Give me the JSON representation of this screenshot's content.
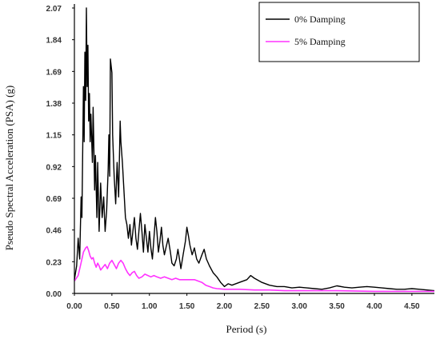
{
  "chart_data": {
    "type": "line",
    "title": "",
    "xlabel": "Period (s)",
    "ylabel": "Pseudo Spectral Acceleration (PSA) (g)",
    "xlim": [
      0,
      4.8
    ],
    "ylim": [
      0,
      2.07
    ],
    "x_ticks": [
      "0.00",
      "0.50",
      "1.00",
      "1.50",
      "2.00",
      "2.50",
      "3.00",
      "3.50",
      "4.00",
      "4.50"
    ],
    "y_ticks": [
      "0.00",
      "0.23",
      "0.46",
      "0.69",
      "0.92",
      "1.15",
      "1.38",
      "1.69",
      "1.84",
      "2.07"
    ],
    "legend_position": "top-right",
    "grid": false,
    "series": [
      {
        "name": "0% Damping",
        "color": "#000000",
        "points": [
          [
            0.0,
            0.1
          ],
          [
            0.03,
            0.2
          ],
          [
            0.05,
            0.4
          ],
          [
            0.07,
            0.25
          ],
          [
            0.09,
            0.7
          ],
          [
            0.1,
            0.55
          ],
          [
            0.12,
            1.5
          ],
          [
            0.13,
            1.1
          ],
          [
            0.14,
            1.75
          ],
          [
            0.15,
            1.4
          ],
          [
            0.16,
            2.07
          ],
          [
            0.17,
            1.5
          ],
          [
            0.18,
            1.8
          ],
          [
            0.19,
            1.25
          ],
          [
            0.2,
            1.45
          ],
          [
            0.21,
            1.1
          ],
          [
            0.22,
            1.3
          ],
          [
            0.24,
            0.95
          ],
          [
            0.25,
            1.35
          ],
          [
            0.27,
            0.75
          ],
          [
            0.28,
            1.0
          ],
          [
            0.3,
            0.55
          ],
          [
            0.31,
            0.95
          ],
          [
            0.33,
            0.45
          ],
          [
            0.35,
            0.8
          ],
          [
            0.37,
            0.55
          ],
          [
            0.39,
            0.7
          ],
          [
            0.41,
            0.45
          ],
          [
            0.43,
            0.6
          ],
          [
            0.45,
            0.9
          ],
          [
            0.46,
            1.15
          ],
          [
            0.47,
            0.85
          ],
          [
            0.48,
            1.7
          ],
          [
            0.5,
            1.6
          ],
          [
            0.51,
            1.15
          ],
          [
            0.53,
            0.85
          ],
          [
            0.55,
            0.65
          ],
          [
            0.57,
            0.95
          ],
          [
            0.59,
            0.7
          ],
          [
            0.61,
            1.25
          ],
          [
            0.62,
            1.1
          ],
          [
            0.64,
            0.95
          ],
          [
            0.66,
            0.75
          ],
          [
            0.68,
            0.55
          ],
          [
            0.7,
            0.5
          ],
          [
            0.72,
            0.4
          ],
          [
            0.74,
            0.5
          ],
          [
            0.76,
            0.35
          ],
          [
            0.78,
            0.45
          ],
          [
            0.8,
            0.55
          ],
          [
            0.82,
            0.4
          ],
          [
            0.84,
            0.32
          ],
          [
            0.86,
            0.45
          ],
          [
            0.88,
            0.58
          ],
          [
            0.9,
            0.45
          ],
          [
            0.92,
            0.3
          ],
          [
            0.94,
            0.5
          ],
          [
            0.96,
            0.4
          ],
          [
            0.98,
            0.3
          ],
          [
            1.0,
            0.45
          ],
          [
            1.02,
            0.33
          ],
          [
            1.04,
            0.25
          ],
          [
            1.06,
            0.4
          ],
          [
            1.08,
            0.55
          ],
          [
            1.1,
            0.45
          ],
          [
            1.12,
            0.3
          ],
          [
            1.14,
            0.38
          ],
          [
            1.16,
            0.48
          ],
          [
            1.18,
            0.35
          ],
          [
            1.2,
            0.28
          ],
          [
            1.22,
            0.33
          ],
          [
            1.25,
            0.4
          ],
          [
            1.28,
            0.3
          ],
          [
            1.3,
            0.22
          ],
          [
            1.33,
            0.2
          ],
          [
            1.36,
            0.25
          ],
          [
            1.38,
            0.32
          ],
          [
            1.4,
            0.25
          ],
          [
            1.42,
            0.18
          ],
          [
            1.45,
            0.28
          ],
          [
            1.48,
            0.38
          ],
          [
            1.5,
            0.48
          ],
          [
            1.52,
            0.42
          ],
          [
            1.54,
            0.35
          ],
          [
            1.57,
            0.28
          ],
          [
            1.6,
            0.33
          ],
          [
            1.63,
            0.25
          ],
          [
            1.66,
            0.22
          ],
          [
            1.7,
            0.28
          ],
          [
            1.73,
            0.32
          ],
          [
            1.76,
            0.25
          ],
          [
            1.8,
            0.2
          ],
          [
            1.85,
            0.15
          ],
          [
            1.9,
            0.12
          ],
          [
            1.95,
            0.08
          ],
          [
            2.0,
            0.05
          ],
          [
            2.05,
            0.07
          ],
          [
            2.1,
            0.06
          ],
          [
            2.2,
            0.08
          ],
          [
            2.3,
            0.1
          ],
          [
            2.35,
            0.13
          ],
          [
            2.4,
            0.11
          ],
          [
            2.5,
            0.08
          ],
          [
            2.6,
            0.06
          ],
          [
            2.7,
            0.05
          ],
          [
            2.8,
            0.05
          ],
          [
            2.9,
            0.04
          ],
          [
            3.0,
            0.045
          ],
          [
            3.1,
            0.04
          ],
          [
            3.2,
            0.035
          ],
          [
            3.3,
            0.03
          ],
          [
            3.4,
            0.04
          ],
          [
            3.5,
            0.055
          ],
          [
            3.6,
            0.045
          ],
          [
            3.7,
            0.04
          ],
          [
            3.8,
            0.045
          ],
          [
            3.9,
            0.05
          ],
          [
            4.0,
            0.045
          ],
          [
            4.1,
            0.04
          ],
          [
            4.2,
            0.035
          ],
          [
            4.3,
            0.03
          ],
          [
            4.4,
            0.03
          ],
          [
            4.5,
            0.035
          ],
          [
            4.6,
            0.03
          ],
          [
            4.7,
            0.025
          ],
          [
            4.8,
            0.02
          ]
        ]
      },
      {
        "name": "5% Damping",
        "color": "#ff33ff",
        "points": [
          [
            0.0,
            0.09
          ],
          [
            0.05,
            0.13
          ],
          [
            0.08,
            0.2
          ],
          [
            0.1,
            0.25
          ],
          [
            0.12,
            0.3
          ],
          [
            0.15,
            0.33
          ],
          [
            0.17,
            0.34
          ],
          [
            0.19,
            0.31
          ],
          [
            0.21,
            0.27
          ],
          [
            0.23,
            0.25
          ],
          [
            0.25,
            0.26
          ],
          [
            0.27,
            0.22
          ],
          [
            0.29,
            0.19
          ],
          [
            0.31,
            0.22
          ],
          [
            0.33,
            0.2
          ],
          [
            0.35,
            0.17
          ],
          [
            0.38,
            0.19
          ],
          [
            0.41,
            0.21
          ],
          [
            0.44,
            0.18
          ],
          [
            0.47,
            0.22
          ],
          [
            0.5,
            0.24
          ],
          [
            0.53,
            0.21
          ],
          [
            0.56,
            0.18
          ],
          [
            0.59,
            0.22
          ],
          [
            0.62,
            0.24
          ],
          [
            0.65,
            0.22
          ],
          [
            0.68,
            0.18
          ],
          [
            0.71,
            0.15
          ],
          [
            0.74,
            0.13
          ],
          [
            0.77,
            0.15
          ],
          [
            0.8,
            0.16
          ],
          [
            0.83,
            0.13
          ],
          [
            0.86,
            0.11
          ],
          [
            0.9,
            0.12
          ],
          [
            0.94,
            0.14
          ],
          [
            0.98,
            0.13
          ],
          [
            1.02,
            0.12
          ],
          [
            1.06,
            0.13
          ],
          [
            1.1,
            0.12
          ],
          [
            1.15,
            0.11
          ],
          [
            1.2,
            0.12
          ],
          [
            1.25,
            0.11
          ],
          [
            1.3,
            0.1
          ],
          [
            1.35,
            0.11
          ],
          [
            1.4,
            0.1
          ],
          [
            1.45,
            0.1
          ],
          [
            1.5,
            0.1
          ],
          [
            1.55,
            0.1
          ],
          [
            1.6,
            0.1
          ],
          [
            1.65,
            0.09
          ],
          [
            1.7,
            0.08
          ],
          [
            1.75,
            0.06
          ],
          [
            1.8,
            0.05
          ],
          [
            1.85,
            0.04
          ],
          [
            1.9,
            0.035
          ],
          [
            2.0,
            0.03
          ],
          [
            2.2,
            0.03
          ],
          [
            2.4,
            0.025
          ],
          [
            2.6,
            0.025
          ],
          [
            2.8,
            0.02
          ],
          [
            3.0,
            0.02
          ],
          [
            3.5,
            0.02
          ],
          [
            4.0,
            0.015
          ],
          [
            4.5,
            0.015
          ],
          [
            4.8,
            0.015
          ]
        ]
      }
    ]
  }
}
